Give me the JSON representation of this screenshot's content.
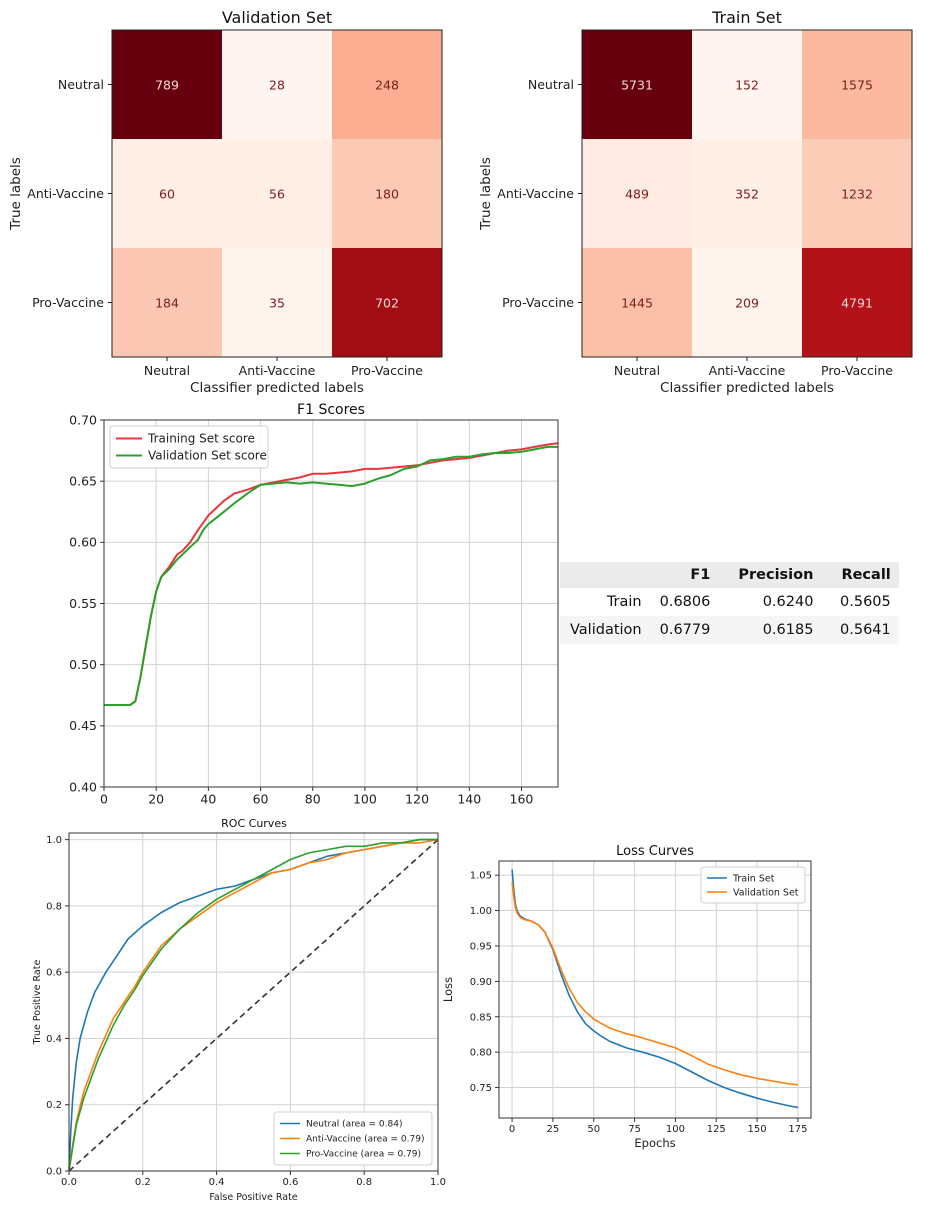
{
  "matrices": [
    {
      "title": "Validation Set",
      "ylabel": "True labels",
      "xlabel": "Classifier predicted labels",
      "labels": [
        "Neutral",
        "Anti-Vaccine",
        "Pro-Vaccine"
      ],
      "values": [
        [
          789,
          28,
          248
        ],
        [
          60,
          56,
          180
        ],
        [
          184,
          35,
          702
        ]
      ]
    },
    {
      "title": "Train Set",
      "ylabel": "True labels",
      "xlabel": "Classifier predicted labels",
      "labels": [
        "Neutral",
        "Anti-Vaccine",
        "Pro-Vaccine"
      ],
      "values": [
        [
          5731,
          152,
          1575
        ],
        [
          489,
          352,
          1232
        ],
        [
          1445,
          209,
          4791
        ]
      ]
    }
  ],
  "metrics_table": {
    "headers": [
      "",
      "F1",
      "Precision",
      "Recall"
    ],
    "rows": [
      [
        "Train",
        "0.6806",
        "0.6240",
        "0.5605"
      ],
      [
        "Validation",
        "0.6779",
        "0.6185",
        "0.5641"
      ]
    ]
  },
  "chart_data": [
    {
      "type": "heatmap",
      "title": "Validation Set",
      "xlabel": "Classifier predicted labels",
      "ylabel": "True labels",
      "x": [
        "Neutral",
        "Anti-Vaccine",
        "Pro-Vaccine"
      ],
      "y": [
        "Neutral",
        "Anti-Vaccine",
        "Pro-Vaccine"
      ],
      "values": [
        [
          789,
          28,
          248
        ],
        [
          60,
          56,
          180
        ],
        [
          184,
          35,
          702
        ]
      ]
    },
    {
      "type": "heatmap",
      "title": "Train Set",
      "xlabel": "Classifier predicted labels",
      "ylabel": "True labels",
      "x": [
        "Neutral",
        "Anti-Vaccine",
        "Pro-Vaccine"
      ],
      "y": [
        "Neutral",
        "Anti-Vaccine",
        "Pro-Vaccine"
      ],
      "values": [
        [
          5731,
          152,
          1575
        ],
        [
          489,
          352,
          1232
        ],
        [
          1445,
          209,
          4791
        ]
      ]
    },
    {
      "type": "line",
      "title": "F1 Scores",
      "xlabel": "",
      "ylabel": "",
      "xlim": [
        0,
        174
      ],
      "ylim": [
        0.4,
        0.7
      ],
      "xticks": [
        0,
        20,
        40,
        60,
        80,
        100,
        120,
        140,
        160
      ],
      "yticks": [
        0.4,
        0.45,
        0.5,
        0.55,
        0.6,
        0.65,
        0.7
      ],
      "grid": true,
      "legend": "top-left",
      "series": [
        {
          "name": "Training Set score",
          "color": "#e8363b",
          "x": [
            0,
            5,
            10,
            12,
            14,
            16,
            18,
            20,
            22,
            25,
            28,
            30,
            33,
            36,
            38,
            40,
            43,
            46,
            50,
            55,
            60,
            65,
            70,
            75,
            80,
            85,
            90,
            95,
            100,
            105,
            110,
            115,
            120,
            125,
            130,
            135,
            140,
            145,
            150,
            155,
            160,
            165,
            170,
            174
          ],
          "y": [
            0.467,
            0.467,
            0.467,
            0.47,
            0.49,
            0.515,
            0.54,
            0.56,
            0.572,
            0.58,
            0.59,
            0.593,
            0.6,
            0.61,
            0.616,
            0.622,
            0.628,
            0.634,
            0.64,
            0.643,
            0.647,
            0.649,
            0.651,
            0.653,
            0.656,
            0.656,
            0.657,
            0.658,
            0.66,
            0.66,
            0.661,
            0.662,
            0.663,
            0.665,
            0.667,
            0.668,
            0.669,
            0.671,
            0.673,
            0.675,
            0.676,
            0.678,
            0.68,
            0.681
          ]
        },
        {
          "name": "Validation Set score",
          "color": "#2ca02c",
          "x": [
            0,
            5,
            10,
            12,
            14,
            16,
            18,
            20,
            22,
            25,
            28,
            30,
            33,
            36,
            38,
            40,
            43,
            46,
            50,
            55,
            60,
            65,
            70,
            75,
            80,
            85,
            90,
            95,
            100,
            105,
            110,
            115,
            120,
            125,
            130,
            135,
            140,
            145,
            150,
            155,
            160,
            165,
            170,
            174
          ],
          "y": [
            0.467,
            0.467,
            0.467,
            0.47,
            0.49,
            0.515,
            0.54,
            0.56,
            0.572,
            0.578,
            0.586,
            0.59,
            0.596,
            0.602,
            0.61,
            0.615,
            0.62,
            0.625,
            0.632,
            0.64,
            0.647,
            0.648,
            0.649,
            0.648,
            0.649,
            0.648,
            0.647,
            0.646,
            0.648,
            0.652,
            0.655,
            0.66,
            0.662,
            0.667,
            0.668,
            0.67,
            0.67,
            0.672,
            0.673,
            0.673,
            0.674,
            0.676,
            0.678,
            0.678
          ]
        }
      ]
    },
    {
      "type": "line",
      "title": "ROC Curves",
      "xlabel": "False Positive Rate",
      "ylabel": "True Positive Rate",
      "xlim": [
        0,
        1
      ],
      "ylim": [
        0,
        1.02
      ],
      "xticks": [
        0.0,
        0.2,
        0.4,
        0.6,
        0.8,
        1.0
      ],
      "yticks": [
        0.0,
        0.2,
        0.4,
        0.6,
        0.8,
        1.0
      ],
      "grid": true,
      "legend": "bottom-right",
      "series": [
        {
          "name": "Neutral (area = 0.84)",
          "color": "#1f77b4",
          "x": [
            0,
            0.005,
            0.01,
            0.02,
            0.03,
            0.05,
            0.07,
            0.1,
            0.13,
            0.16,
            0.2,
            0.25,
            0.3,
            0.35,
            0.4,
            0.45,
            0.5,
            0.55,
            0.6,
            0.65,
            0.7,
            0.75,
            0.8,
            0.85,
            0.9,
            0.95,
            1.0
          ],
          "y": [
            0,
            0.12,
            0.22,
            0.33,
            0.4,
            0.48,
            0.54,
            0.6,
            0.65,
            0.7,
            0.74,
            0.78,
            0.81,
            0.83,
            0.85,
            0.86,
            0.88,
            0.9,
            0.91,
            0.93,
            0.95,
            0.96,
            0.97,
            0.98,
            0.99,
            1.0,
            1.0
          ]
        },
        {
          "name": "Anti-Vaccine (area = 0.79)",
          "color": "#ff7f0e",
          "x": [
            0,
            0.01,
            0.02,
            0.04,
            0.06,
            0.08,
            0.1,
            0.12,
            0.15,
            0.18,
            0.2,
            0.25,
            0.3,
            0.35,
            0.4,
            0.45,
            0.5,
            0.55,
            0.6,
            0.65,
            0.7,
            0.75,
            0.8,
            0.85,
            0.9,
            0.95,
            1.0
          ],
          "y": [
            0,
            0.08,
            0.15,
            0.24,
            0.3,
            0.36,
            0.41,
            0.46,
            0.51,
            0.56,
            0.6,
            0.68,
            0.73,
            0.77,
            0.81,
            0.84,
            0.87,
            0.9,
            0.91,
            0.93,
            0.94,
            0.96,
            0.97,
            0.98,
            0.99,
            0.99,
            1.0
          ]
        },
        {
          "name": "Pro-Vaccine (area = 0.79)",
          "color": "#2ca02c",
          "x": [
            0,
            0.01,
            0.02,
            0.04,
            0.06,
            0.08,
            0.1,
            0.12,
            0.15,
            0.18,
            0.2,
            0.25,
            0.3,
            0.35,
            0.4,
            0.45,
            0.5,
            0.55,
            0.6,
            0.65,
            0.7,
            0.75,
            0.8,
            0.85,
            0.9,
            0.95,
            1.0
          ],
          "y": [
            0,
            0.07,
            0.14,
            0.22,
            0.28,
            0.34,
            0.39,
            0.44,
            0.5,
            0.55,
            0.59,
            0.67,
            0.73,
            0.78,
            0.82,
            0.85,
            0.88,
            0.91,
            0.94,
            0.96,
            0.97,
            0.98,
            0.98,
            0.99,
            0.99,
            1.0,
            1.0
          ]
        }
      ]
    },
    {
      "type": "line",
      "title": "Loss Curves",
      "xlabel": "Epochs",
      "ylabel": "Loss",
      "xlim": [
        -8,
        183
      ],
      "ylim": [
        0.707,
        1.07
      ],
      "xticks": [
        0,
        25,
        50,
        75,
        100,
        125,
        150,
        175
      ],
      "yticks": [
        0.75,
        0.8,
        0.85,
        0.9,
        0.95,
        1.0,
        1.05
      ],
      "grid": true,
      "legend": "top-right",
      "series": [
        {
          "name": "Train Set",
          "color": "#1f77b4",
          "x": [
            0,
            1,
            2,
            3,
            5,
            8,
            12,
            16,
            20,
            25,
            30,
            35,
            40,
            45,
            50,
            55,
            60,
            70,
            80,
            90,
            100,
            110,
            120,
            130,
            140,
            150,
            160,
            170,
            175
          ],
          "y": [
            1.058,
            1.03,
            1.01,
            1.0,
            0.992,
            0.988,
            0.985,
            0.98,
            0.97,
            0.945,
            0.91,
            0.88,
            0.857,
            0.84,
            0.83,
            0.822,
            0.815,
            0.806,
            0.8,
            0.793,
            0.784,
            0.772,
            0.76,
            0.75,
            0.742,
            0.735,
            0.729,
            0.724,
            0.722
          ]
        },
        {
          "name": "Validation Set",
          "color": "#ff7f0e",
          "x": [
            0,
            1,
            2,
            3,
            5,
            8,
            12,
            16,
            20,
            25,
            30,
            35,
            40,
            45,
            50,
            55,
            60,
            70,
            80,
            90,
            100,
            110,
            120,
            130,
            140,
            150,
            160,
            170,
            175
          ],
          "y": [
            1.04,
            1.02,
            1.005,
            0.997,
            0.99,
            0.987,
            0.985,
            0.98,
            0.97,
            0.947,
            0.916,
            0.89,
            0.87,
            0.857,
            0.847,
            0.84,
            0.834,
            0.826,
            0.82,
            0.813,
            0.806,
            0.795,
            0.783,
            0.775,
            0.768,
            0.763,
            0.759,
            0.755,
            0.754
          ]
        }
      ]
    }
  ]
}
